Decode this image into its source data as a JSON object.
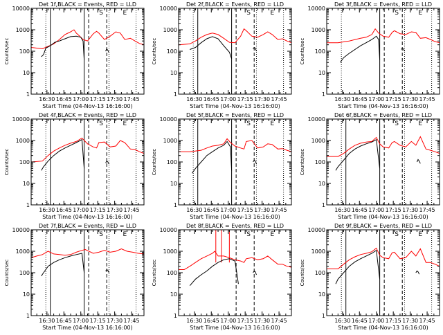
{
  "colors": {
    "events": "#000000",
    "lld": "#ff0000",
    "axis": "#000000"
  },
  "chart_data": {
    "type": "line",
    "layout": "3x3 grid of panels",
    "yscale": "log",
    "ylim": [
      1,
      10000
    ],
    "ytick_values": [
      1,
      10,
      100,
      1000,
      10000
    ],
    "ytick_labels": [
      "1",
      "10",
      "100",
      "1000",
      "10000"
    ],
    "ylabel": "Counts/sec",
    "xlabel": "Start Time (04-Nov-13 16:16:00)",
    "xlim_minutes": [
      0,
      100
    ],
    "xtick_minutes": [
      14,
      29,
      44,
      59,
      74,
      89
    ],
    "xtick_labels": [
      "16:30",
      "16:45",
      "17:00",
      "17:15",
      "17:30",
      "17:45"
    ],
    "marker_labels": [
      "S",
      "E"
    ],
    "marker_label_minutes": [
      62,
      83
    ],
    "panels": [
      {
        "title": "Det 1f,BLACK = Events, RED = LLD",
        "lld": {
          "t": [
            0,
            10,
            20,
            25,
            30,
            35,
            38,
            40,
            43,
            46,
            50,
            55,
            58,
            60,
            65,
            70,
            75,
            79,
            83,
            88,
            92,
            96,
            100
          ],
          "v": [
            150,
            130,
            220,
            350,
            600,
            800,
            1000,
            700,
            500,
            350,
            300,
            650,
            850,
            700,
            350,
            500,
            800,
            700,
            350,
            400,
            300,
            230,
            200
          ]
        },
        "events": {
          "t": [
            9,
            11,
            13,
            17,
            21,
            25,
            30,
            35,
            40,
            44,
            46,
            47
          ],
          "v": [
            55,
            70,
            140,
            180,
            260,
            300,
            380,
            480,
            500,
            450,
            300,
            40
          ]
        },
        "events_tail": {
          "t": [
            66,
            67,
            68,
            69
          ],
          "v": [
            100,
            130,
            110,
            85
          ]
        },
        "lines": {
          "dotted": [
            13,
            69,
            93
          ],
          "solid": [
            17,
            47
          ],
          "dashed": [
            51,
            67
          ]
        }
      },
      {
        "title": "Det 2f,BLACK = Events, RED = LLD",
        "lld": {
          "t": [
            0,
            10,
            15,
            20,
            25,
            30,
            35,
            40,
            45,
            50,
            55,
            58,
            60,
            65,
            70,
            75,
            79,
            83,
            88,
            92,
            96,
            100
          ],
          "v": [
            200,
            220,
            300,
            450,
            600,
            700,
            600,
            400,
            260,
            250,
            500,
            1100,
            900,
            500,
            450,
            600,
            800,
            600,
            350,
            380,
            300,
            250
          ]
        },
        "events": {
          "t": [
            10,
            15,
            20,
            25,
            30,
            35,
            40,
            45,
            47
          ],
          "v": [
            120,
            150,
            250,
            380,
            480,
            380,
            180,
            90,
            45
          ]
        },
        "events_tail": {
          "t": [
            66,
            67,
            68,
            69
          ],
          "v": [
            130,
            150,
            140,
            100
          ]
        },
        "lines": {
          "dotted": [
            13,
            69,
            93
          ],
          "solid": [
            17,
            47
          ],
          "dashed": [
            51,
            67
          ]
        }
      },
      {
        "title": "Det 3f,BLACK = Events, RED = LLD",
        "lld": {
          "t": [
            0,
            10,
            20,
            30,
            35,
            40,
            43,
            46,
            50,
            55,
            58,
            60,
            65,
            70,
            75,
            79,
            83,
            88,
            92,
            96,
            100
          ],
          "v": [
            250,
            250,
            300,
            400,
            450,
            600,
            1100,
            700,
            500,
            450,
            750,
            900,
            650,
            600,
            800,
            750,
            400,
            430,
            350,
            280,
            250
          ]
        },
        "events": {
          "t": [
            12,
            15,
            20,
            25,
            30,
            35,
            40,
            44,
            46,
            47
          ],
          "v": [
            30,
            50,
            80,
            120,
            180,
            250,
            350,
            500,
            350,
            40
          ]
        },
        "events_tail": {
          "t": [
            66,
            67,
            68,
            69
          ],
          "v": [
            120,
            140,
            130,
            100
          ]
        },
        "lines": {
          "dotted": [
            13,
            69,
            93
          ],
          "solid": [
            47
          ],
          "dashed": [
            51,
            67
          ]
        }
      },
      {
        "title": "Det 4f,BLACK = Events, RED = LLD",
        "lld": {
          "t": [
            0,
            10,
            15,
            20,
            25,
            30,
            35,
            40,
            45,
            50,
            55,
            58,
            60,
            65,
            70,
            75,
            79,
            83,
            88,
            92,
            96,
            100
          ],
          "v": [
            100,
            110,
            200,
            320,
            450,
            600,
            750,
            900,
            1300,
            700,
            500,
            450,
            800,
            850,
            500,
            550,
            1000,
            800,
            400,
            380,
            300,
            250
          ]
        },
        "events": {
          "t": [
            9,
            11,
            15,
            20,
            25,
            30,
            35,
            40,
            45,
            47
          ],
          "v": [
            40,
            60,
            110,
            200,
            320,
            450,
            600,
            800,
            1100,
            50
          ]
        },
        "events_tail": {
          "t": [
            66,
            67,
            68,
            69
          ],
          "v": [
            90,
            110,
            100,
            80
          ]
        },
        "lines": {
          "dotted": [
            13,
            69,
            93
          ],
          "solid": [
            17,
            47
          ],
          "dashed": [
            51,
            67
          ]
        }
      },
      {
        "title": "Det 5f,BLACK = Events, RED = LLD",
        "lld": {
          "t": [
            0,
            10,
            20,
            25,
            30,
            35,
            40,
            43,
            46,
            50,
            55,
            58,
            60,
            65,
            70,
            75,
            79,
            83,
            88,
            92,
            96,
            100
          ],
          "v": [
            300,
            300,
            350,
            450,
            550,
            600,
            700,
            1200,
            800,
            550,
            450,
            400,
            900,
            1000,
            450,
            500,
            700,
            650,
            400,
            420,
            350,
            300
          ]
        },
        "events": {
          "t": [
            12,
            15,
            20,
            25,
            30,
            35,
            40,
            43,
            46,
            47
          ],
          "v": [
            30,
            50,
            100,
            200,
            300,
            450,
            600,
            900,
            500,
            40
          ]
        },
        "events_tail": {
          "t": [
            66,
            67,
            68,
            69
          ],
          "v": [
            100,
            120,
            110,
            80
          ]
        },
        "lines": {
          "dotted": [
            13,
            69,
            93
          ],
          "solid": [
            17,
            47
          ],
          "dashed": [
            51,
            67
          ]
        }
      },
      {
        "title": "Det 6f,BLACK = Events, RED = LLD",
        "lld": {
          "t": [
            0,
            10,
            15,
            20,
            25,
            30,
            35,
            40,
            44,
            47,
            50,
            55,
            58,
            60,
            65,
            70,
            75,
            79,
            83,
            88,
            92,
            96,
            100
          ],
          "v": [
            180,
            180,
            250,
            400,
            600,
            750,
            850,
            900,
            1400,
            700,
            500,
            450,
            800,
            900,
            600,
            500,
            900,
            600,
            1500,
            400,
            350,
            300,
            250
          ]
        },
        "events": {
          "t": [
            8,
            10,
            15,
            20,
            25,
            30,
            35,
            40,
            44,
            47
          ],
          "v": [
            40,
            60,
            120,
            250,
            400,
            550,
            700,
            850,
            1100,
            50
          ]
        },
        "events_tail": {
          "t": [
            80,
            81,
            82,
            83
          ],
          "v": [
            100,
            130,
            110,
            85
          ]
        },
        "lines": {
          "dotted": [
            13,
            69,
            93
          ],
          "solid": [
            17,
            47
          ],
          "dashed": [
            51,
            67
          ]
        }
      },
      {
        "title": "Det 7f,BLACK = Events, RED = LLD",
        "lld": {
          "t": [
            0,
            5,
            10,
            15,
            20,
            25,
            30,
            35,
            40,
            45,
            48,
            55,
            60,
            65,
            70,
            75,
            80,
            85,
            90,
            95,
            100
          ],
          "v": [
            500,
            600,
            700,
            1000,
            750,
            700,
            650,
            700,
            900,
            1100,
            1200,
            800,
            900,
            1100,
            900,
            1000,
            1300,
            1000,
            900,
            800,
            750
          ]
        },
        "events": {
          "t": [
            9,
            11,
            15,
            20,
            25,
            30,
            35,
            40,
            45,
            47
          ],
          "v": [
            70,
            100,
            200,
            300,
            400,
            500,
            600,
            700,
            800,
            100
          ]
        },
        "events_tail": {
          "t": [
            66,
            67,
            68,
            69
          ],
          "v": [
            120,
            140,
            130,
            100
          ]
        },
        "lines": {
          "dotted": [
            13,
            69,
            93
          ],
          "solid": [
            17,
            47
          ],
          "dashed": [
            51,
            67
          ]
        }
      },
      {
        "title": "Det 8f,BLACK = Events, RED = LLD",
        "lld": {
          "t": [
            0,
            5,
            10,
            15,
            20,
            25,
            30,
            32,
            35,
            40,
            45,
            50,
            55,
            58,
            60,
            65,
            70,
            75,
            79,
            83,
            88,
            92,
            96,
            100
          ],
          "v": [
            140,
            140,
            200,
            300,
            450,
            600,
            800,
            1000,
            600,
            600,
            500,
            400,
            350,
            300,
            450,
            500,
            400,
            450,
            600,
            400,
            250,
            250,
            200,
            180
          ]
        },
        "events": {
          "t": [
            10,
            15,
            20,
            25,
            30,
            35,
            40,
            45,
            50,
            53
          ],
          "v": [
            25,
            50,
            80,
            120,
            200,
            300,
            400,
            450,
            350,
            30
          ]
        },
        "events_tail": {
          "t": [
            66,
            67,
            68,
            69
          ],
          "v": [
            100,
            120,
            110,
            80
          ]
        },
        "spikes_red": [
          33,
          38,
          45
        ],
        "lines": {
          "dotted": [],
          "solid": [],
          "dashed": [
            51,
            67
          ]
        }
      },
      {
        "title": "Det 9f,BLACK = Events, RED = LLD",
        "lld": {
          "t": [
            0,
            10,
            15,
            20,
            25,
            30,
            35,
            40,
            44,
            47,
            50,
            55,
            58,
            60,
            65,
            70,
            75,
            79,
            83,
            88,
            92,
            96,
            100
          ],
          "v": [
            150,
            150,
            250,
            400,
            550,
            700,
            800,
            950,
            1400,
            650,
            500,
            450,
            850,
            900,
            450,
            500,
            1000,
            600,
            1300,
            300,
            300,
            250,
            200
          ]
        },
        "events": {
          "t": [
            8,
            10,
            15,
            20,
            25,
            30,
            35,
            40,
            44,
            47
          ],
          "v": [
            30,
            50,
            100,
            200,
            320,
            450,
            600,
            800,
            1100,
            50
          ]
        },
        "events_tail": {
          "t": [
            79,
            80,
            81,
            82
          ],
          "v": [
            100,
            120,
            110,
            85
          ]
        },
        "lines": {
          "dotted": [
            13,
            69,
            93
          ],
          "solid": [
            17,
            47
          ],
          "dashed": [
            51,
            67
          ]
        }
      }
    ]
  }
}
